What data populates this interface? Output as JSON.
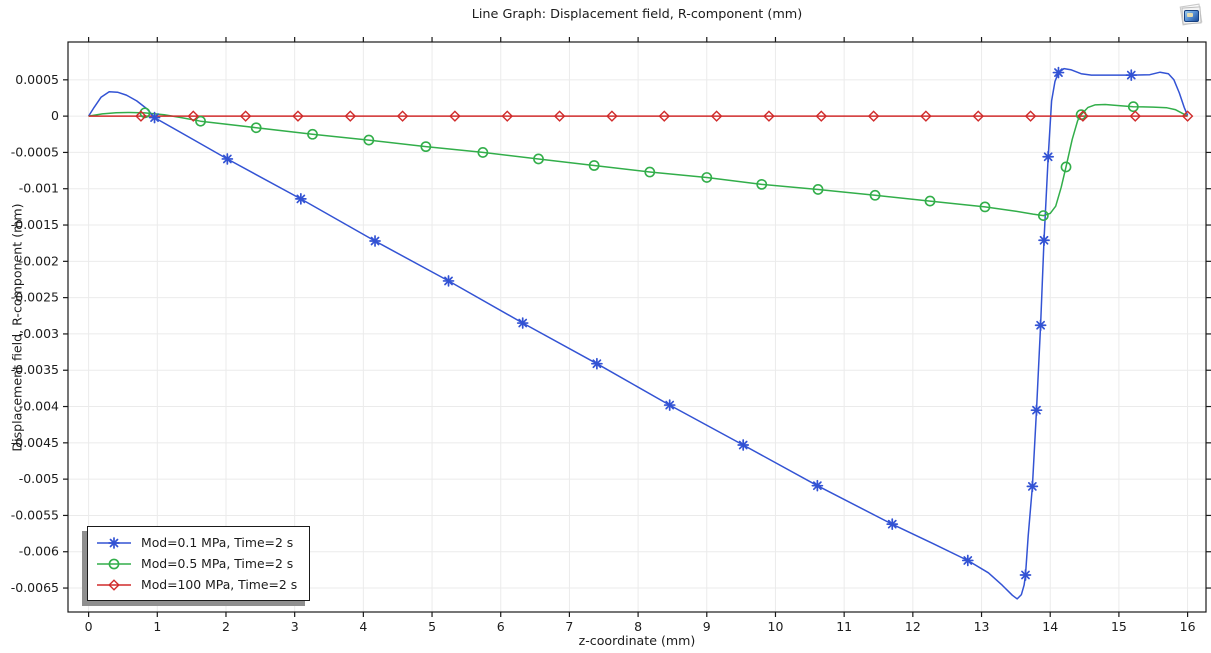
{
  "window": {
    "corner_icon": "plot-thumbnail"
  },
  "chart_data": {
    "type": "line",
    "title": "Line Graph: Displacement field, R-component (mm)",
    "xlabel": "z-coordinate (mm)",
    "ylabel": "Displacement field, R-component (mm)",
    "grid": true,
    "legend_position": "lower-left",
    "x_range": [
      -0.3,
      16.268
    ],
    "y_range": [
      -0.00683,
      0.001021
    ],
    "x_ticks": {
      "values": [
        0,
        1,
        2,
        3,
        4,
        5,
        6,
        7,
        8,
        9,
        10,
        11,
        12,
        13,
        14,
        15,
        16
      ],
      "labels": [
        "0",
        "1",
        "2",
        "3",
        "4",
        "5",
        "6",
        "7",
        "8",
        "9",
        "10",
        "11",
        "12",
        "13",
        "14",
        "15",
        "16"
      ]
    },
    "y_ticks": {
      "values": [
        0.0005,
        0,
        -0.0005,
        -0.001,
        -0.0015,
        -0.002,
        -0.0025,
        -0.003,
        -0.0035,
        -0.004,
        -0.0045,
        -0.005,
        -0.0055,
        -0.006,
        -0.0065
      ],
      "labels": [
        "0.0005",
        "0",
        "-0.0005",
        "-0.001",
        "-0.0015",
        "-0.002",
        "-0.0025",
        "-0.003",
        "-0.0035",
        "-0.004",
        "-0.0045",
        "-0.005",
        "-0.0055",
        "-0.006",
        "-0.0065"
      ]
    },
    "series": [
      {
        "name": "Mod=0.1 MPa, Time=2 s",
        "color": "#3353d4",
        "marker": "asterisk",
        "points": [
          [
            0,
            0
          ],
          [
            0.08,
            0.00012
          ],
          [
            0.18,
            0.00026
          ],
          [
            0.3,
            0.000335
          ],
          [
            0.42,
            0.00033
          ],
          [
            0.55,
            0.00029
          ],
          [
            0.7,
            0.00021
          ],
          [
            0.85,
            0.0001
          ],
          [
            0.96,
            -2e-05
          ],
          [
            1.5,
            -0.00031
          ],
          [
            2.02,
            -0.00059
          ],
          [
            3.09,
            -0.00114
          ],
          [
            4.17,
            -0.00172
          ],
          [
            5.24,
            -0.00227
          ],
          [
            6.32,
            -0.00285
          ],
          [
            7.4,
            -0.00341
          ],
          [
            8.46,
            -0.00398
          ],
          [
            9.53,
            -0.00453
          ],
          [
            10.61,
            -0.00509
          ],
          [
            11.7,
            -0.00562
          ],
          [
            12.3,
            -0.00589
          ],
          [
            12.8,
            -0.00612
          ],
          [
            13.1,
            -0.00629
          ],
          [
            13.3,
            -0.00646
          ],
          [
            13.45,
            -0.0066
          ],
          [
            13.52,
            -0.00665
          ],
          [
            13.58,
            -0.00659
          ],
          [
            13.62,
            -0.00646
          ],
          [
            13.64,
            -0.00632
          ],
          [
            13.68,
            -0.00578
          ],
          [
            13.74,
            -0.0051
          ],
          [
            13.8,
            -0.00405
          ],
          [
            13.86,
            -0.00288
          ],
          [
            13.91,
            -0.00171
          ],
          [
            13.97,
            -0.00056
          ],
          [
            14.02,
            0.00021
          ],
          [
            14.07,
            0.00048
          ],
          [
            14.12,
            0.0006
          ],
          [
            14.2,
            0.000655
          ],
          [
            14.3,
            0.00064
          ],
          [
            14.45,
            0.000585
          ],
          [
            14.6,
            0.000565
          ],
          [
            15.18,
            0.000565
          ],
          [
            15.45,
            0.00057
          ],
          [
            15.6,
            0.000605
          ],
          [
            15.72,
            0.000585
          ],
          [
            15.8,
            0.0005
          ],
          [
            15.88,
            0.00032
          ],
          [
            15.95,
            0.00012
          ],
          [
            16,
            1e-05
          ]
        ],
        "marker_points": [
          [
            0.96,
            -2e-05
          ],
          [
            2.02,
            -0.00059
          ],
          [
            3.09,
            -0.00114
          ],
          [
            4.17,
            -0.00172
          ],
          [
            5.24,
            -0.00227
          ],
          [
            6.32,
            -0.00285
          ],
          [
            7.4,
            -0.00341
          ],
          [
            8.46,
            -0.00398
          ],
          [
            9.53,
            -0.00453
          ],
          [
            10.61,
            -0.00509
          ],
          [
            11.7,
            -0.00562
          ],
          [
            12.8,
            -0.00612
          ],
          [
            13.64,
            -0.00632
          ],
          [
            13.74,
            -0.0051
          ],
          [
            13.8,
            -0.00405
          ],
          [
            13.86,
            -0.00288
          ],
          [
            13.91,
            -0.00171
          ],
          [
            13.97,
            -0.00056
          ],
          [
            14.12,
            0.0006
          ],
          [
            15.18,
            0.000565
          ]
        ]
      },
      {
        "name": "Mod=0.5 MPa, Time=2 s",
        "color": "#32ae4a",
        "marker": "circle",
        "points": [
          [
            0,
            0
          ],
          [
            0.2,
            3e-05
          ],
          [
            0.4,
            4.7e-05
          ],
          [
            0.6,
            5e-05
          ],
          [
            0.82,
            4.5e-05
          ],
          [
            1.1,
            2e-05
          ],
          [
            1.35,
            -2e-05
          ],
          [
            1.63,
            -7e-05
          ],
          [
            2.44,
            -0.00016
          ],
          [
            3.26,
            -0.00025
          ],
          [
            4.08,
            -0.00033
          ],
          [
            4.91,
            -0.00042
          ],
          [
            5.74,
            -0.0005
          ],
          [
            6.55,
            -0.00059
          ],
          [
            7.36,
            -0.00068
          ],
          [
            8.17,
            -0.00077
          ],
          [
            9,
            -0.000845
          ],
          [
            9.8,
            -0.00094
          ],
          [
            10.62,
            -0.00101
          ],
          [
            11.45,
            -0.00109
          ],
          [
            12.25,
            -0.00117
          ],
          [
            13.05,
            -0.00125
          ],
          [
            13.5,
            -0.00131
          ],
          [
            13.75,
            -0.00135
          ],
          [
            13.9,
            -0.00137
          ],
          [
            14,
            -0.00134
          ],
          [
            14.08,
            -0.00124
          ],
          [
            14.16,
            -0.00098
          ],
          [
            14.23,
            -0.0007
          ],
          [
            14.32,
            -0.00032
          ],
          [
            14.4,
            -6e-05
          ],
          [
            14.45,
            2e-05
          ],
          [
            14.55,
            0.00012
          ],
          [
            14.65,
            0.000155
          ],
          [
            14.8,
            0.00016
          ],
          [
            15,
            0.000145
          ],
          [
            15.21,
            0.00013
          ],
          [
            15.5,
            0.000125
          ],
          [
            15.7,
            0.000115
          ],
          [
            15.82,
            9e-05
          ],
          [
            15.92,
            4e-05
          ],
          [
            16,
            0
          ]
        ],
        "marker_points": [
          [
            0.82,
            4.5e-05
          ],
          [
            1.63,
            -7e-05
          ],
          [
            2.44,
            -0.00016
          ],
          [
            3.26,
            -0.00025
          ],
          [
            4.08,
            -0.00033
          ],
          [
            4.91,
            -0.00042
          ],
          [
            5.74,
            -0.0005
          ],
          [
            6.55,
            -0.00059
          ],
          [
            7.36,
            -0.00068
          ],
          [
            8.17,
            -0.00077
          ],
          [
            9,
            -0.000845
          ],
          [
            9.8,
            -0.00094
          ],
          [
            10.62,
            -0.00101
          ],
          [
            11.45,
            -0.00109
          ],
          [
            12.25,
            -0.00117
          ],
          [
            13.05,
            -0.00125
          ],
          [
            13.9,
            -0.00137
          ],
          [
            14.23,
            -0.0007
          ],
          [
            14.45,
            2e-05
          ],
          [
            15.21,
            0.00013
          ]
        ]
      },
      {
        "name": "Mod=100 MPa, Time=2 s",
        "color": "#d02c2c",
        "marker": "diamond",
        "points": [
          [
            0,
            0
          ],
          [
            16,
            0
          ]
        ],
        "marker_points": [
          [
            0.762,
            0
          ],
          [
            1.524,
            0
          ],
          [
            2.286,
            0
          ],
          [
            3.048,
            0
          ],
          [
            3.81,
            0
          ],
          [
            4.571,
            0
          ],
          [
            5.333,
            0
          ],
          [
            6.095,
            0
          ],
          [
            6.857,
            0
          ],
          [
            7.619,
            0
          ],
          [
            8.381,
            0
          ],
          [
            9.143,
            0
          ],
          [
            9.905,
            0
          ],
          [
            10.667,
            0
          ],
          [
            11.429,
            0
          ],
          [
            12.19,
            0
          ],
          [
            12.952,
            0
          ],
          [
            13.714,
            0
          ],
          [
            14.476,
            0
          ],
          [
            15.238,
            0
          ],
          [
            16,
            0
          ]
        ]
      }
    ]
  }
}
